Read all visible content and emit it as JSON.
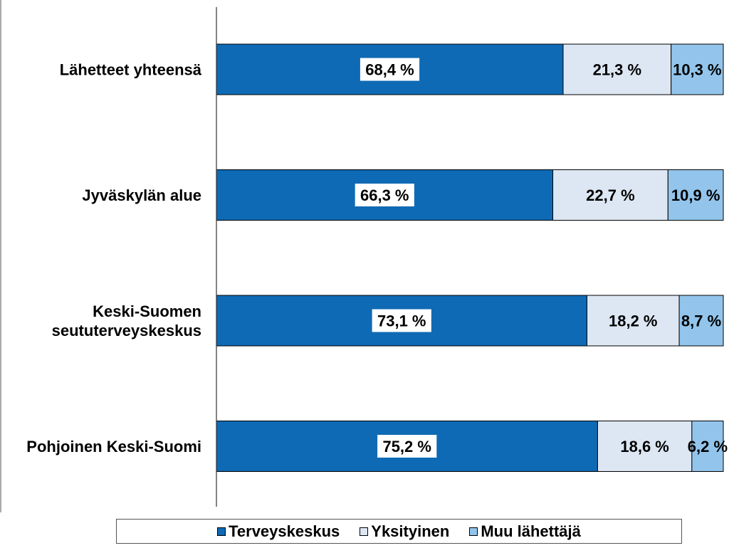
{
  "chart_data": {
    "type": "bar",
    "orientation": "horizontal",
    "stacked": "percent",
    "categories": [
      "Lähetteet yhteensä",
      "Jyväskylän alue",
      "Keski-Suomen seututerveyskeskus",
      "Pohjoinen Keski-Suomi"
    ],
    "category_lines": [
      [
        "Lähetteet yhteensä"
      ],
      [
        "Jyväskylän alue"
      ],
      [
        "Keski-Suomen",
        "seututerveyskeskus"
      ],
      [
        "Pohjoinen Keski-Suomi"
      ]
    ],
    "series": [
      {
        "name": "Terveyskeskus",
        "color": "#0e6ab4",
        "values": [
          68.4,
          66.3,
          73.1,
          75.2
        ],
        "labels": [
          "68,4 %",
          "66,3 %",
          "73,1 %",
          "75,2 %"
        ]
      },
      {
        "name": "Yksityinen",
        "color": "#dde7f3",
        "values": [
          21.3,
          22.7,
          18.2,
          18.6
        ],
        "labels": [
          "21,3 %",
          "22,7 %",
          "18,2 %",
          "18,6 %"
        ]
      },
      {
        "name": "Muu lähettäjä",
        "color": "#93c5ec",
        "values": [
          10.3,
          10.9,
          8.7,
          6.2
        ],
        "labels": [
          "10,3 %",
          "10,9 %",
          "8,7 %",
          "6,2 %"
        ]
      }
    ],
    "xlim": [
      0,
      100
    ],
    "grid": false,
    "legend_position": "bottom"
  }
}
